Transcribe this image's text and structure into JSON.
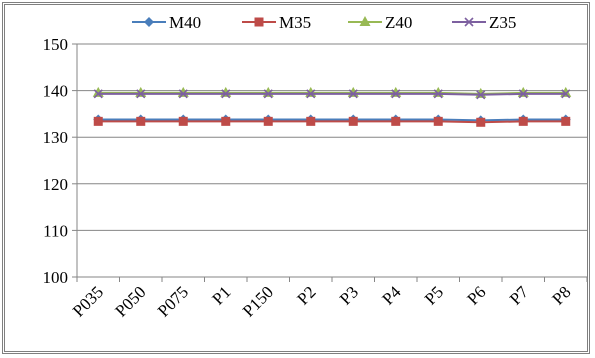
{
  "chart_data": {
    "type": "line",
    "categories": [
      "P035",
      "P050",
      "P075",
      "P1",
      "P150",
      "P2",
      "P3",
      "P4",
      "P5",
      "P6",
      "P7",
      "P8"
    ],
    "ylim": [
      100,
      150
    ],
    "yticks": [
      100,
      110,
      120,
      130,
      140,
      150
    ],
    "grid": true,
    "legend_position": "top",
    "series": [
      {
        "name": "M40",
        "color": "#4a7ebb",
        "marker": "diamond",
        "values": [
          133.8,
          133.8,
          133.8,
          133.8,
          133.8,
          133.8,
          133.8,
          133.8,
          133.8,
          133.6,
          133.8,
          133.8
        ]
      },
      {
        "name": "M35",
        "color": "#be4b48",
        "marker": "square",
        "values": [
          133.4,
          133.4,
          133.4,
          133.4,
          133.4,
          133.4,
          133.4,
          133.4,
          133.4,
          133.2,
          133.4,
          133.4
        ]
      },
      {
        "name": "Z40",
        "color": "#98b954",
        "marker": "triangle",
        "values": [
          139.5,
          139.5,
          139.5,
          139.5,
          139.5,
          139.5,
          139.5,
          139.5,
          139.5,
          139.3,
          139.5,
          139.5
        ]
      },
      {
        "name": "Z35",
        "color": "#7d60a0",
        "marker": "x",
        "values": [
          139.3,
          139.3,
          139.3,
          139.3,
          139.3,
          139.3,
          139.3,
          139.3,
          139.3,
          139.1,
          139.3,
          139.3
        ]
      }
    ]
  }
}
